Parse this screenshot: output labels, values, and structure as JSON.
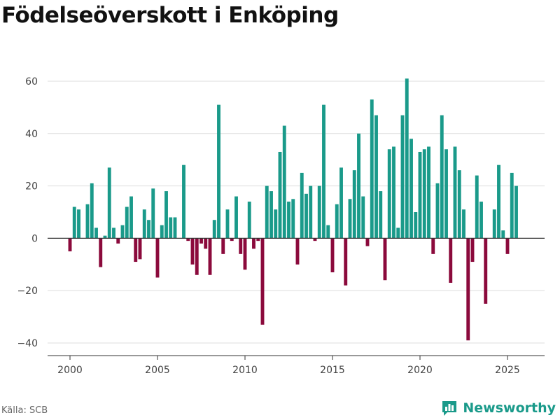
{
  "chart_data": {
    "type": "bar",
    "title": "Födelseöverskott i Enköping",
    "source": "Källa: SCB",
    "brand": "Newsworthy",
    "xlabel": "",
    "ylabel": "",
    "start_year": 2000,
    "periods_per_year": 4,
    "xlim": [
      1999.2,
      2026.6
    ],
    "ylim": [
      -45,
      63
    ],
    "x_ticks": [
      2000,
      2005,
      2010,
      2015,
      2020,
      2025
    ],
    "y_ticks": [
      -40,
      -20,
      0,
      20,
      40,
      60
    ],
    "colors": {
      "positive": "#1a9a8a",
      "negative": "#8b0a3c",
      "grid": "#dddddd",
      "zero": "#333333"
    },
    "values": [
      -5,
      12,
      11,
      0,
      13,
      21,
      4,
      -11,
      1,
      27,
      4,
      -2,
      5,
      12,
      16,
      -9,
      -8,
      11,
      7,
      19,
      -15,
      5,
      18,
      8,
      8,
      0,
      28,
      -1,
      -10,
      -14,
      -2,
      -4,
      -14,
      7,
      51,
      -6,
      11,
      -1,
      16,
      -6,
      -12,
      14,
      -4,
      -1,
      -33,
      20,
      18,
      11,
      33,
      43,
      14,
      15,
      -10,
      25,
      17,
      20,
      -1,
      20,
      51,
      5,
      -13,
      13,
      27,
      -18,
      15,
      26,
      40,
      16,
      -3,
      53,
      47,
      18,
      -16,
      34,
      35,
      4,
      47,
      61,
      38,
      10,
      33,
      34,
      35,
      -6,
      21,
      47,
      34,
      -17,
      35,
      26,
      11,
      -39,
      -9,
      24,
      14,
      -25,
      0,
      11,
      28,
      3,
      -6,
      25,
      20
    ]
  }
}
